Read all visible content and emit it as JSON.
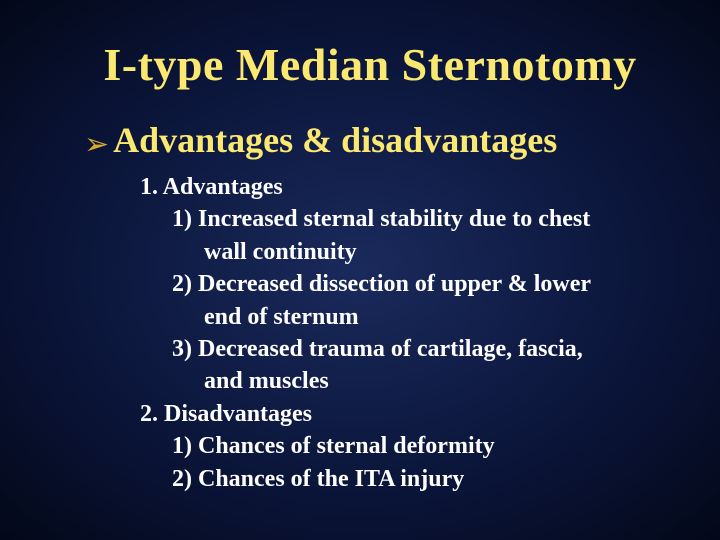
{
  "slide": {
    "title": "I-type Median Sternotomy",
    "bullet_symbol": "➢",
    "bullet_heading": "Advantages & disadvantages",
    "colors": {
      "title_color": "#fbe870",
      "heading_color": "#fbe870",
      "bullet_icon_color": "#d9a930",
      "body_text_color": "#ffffff",
      "background_center": "#1a2a5c",
      "background_edge": "#030818"
    },
    "typography": {
      "title_fontsize": 46,
      "heading_fontsize": 36,
      "body_fontsize": 24,
      "font_family": "Times New Roman",
      "font_weight": "bold"
    },
    "lines": {
      "l1": "1. Advantages",
      "l2": "1) Increased sternal stability due to chest",
      "l2c": "wall continuity",
      "l3": "2) Decreased dissection  of upper & lower",
      "l3c": "end of sternum",
      "l4": "3) Decreased trauma of  cartilage, fascia,",
      "l4c": "and  muscles",
      "l5": "2. Disadvantages",
      "l6": "1) Chances of sternal deformity",
      "l7": "2) Chances of  the  ITA  injury"
    }
  }
}
